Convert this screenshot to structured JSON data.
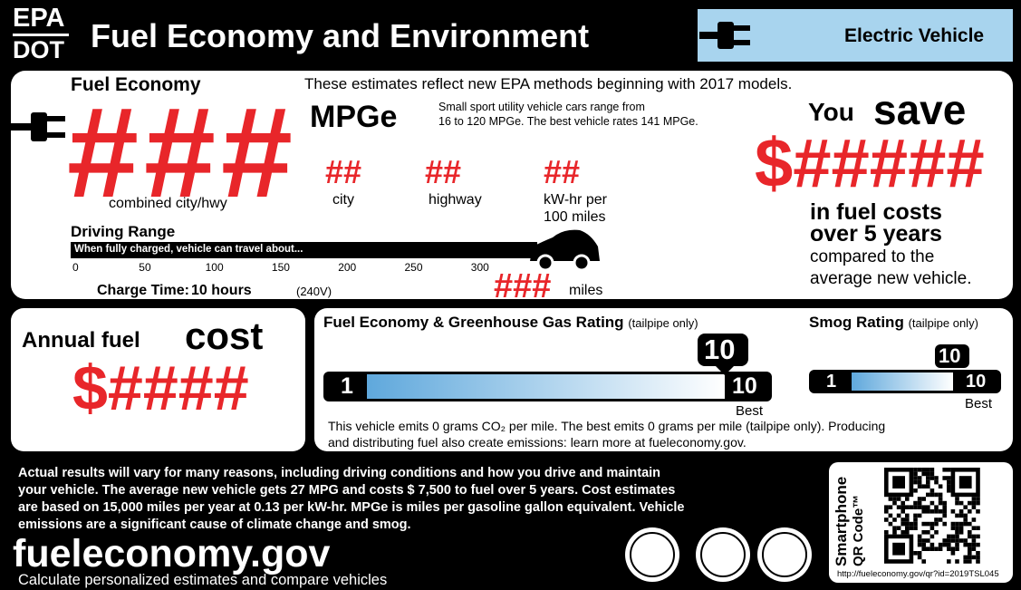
{
  "header": {
    "agency_top": "EPA",
    "agency_bottom": "DOT",
    "title": "Fuel Economy and Environment",
    "vehicle_type": "Electric Vehicle"
  },
  "fuel_economy": {
    "label": "Fuel Economy",
    "note": "These estimates reflect new EPA methods beginning with 2017 models.",
    "combined": "###",
    "unit": "MPGe",
    "range_note": [
      "Small sport utility vehicle cars range from",
      "16 to 120 MPGe. The best vehicle rates 141 MPGe."
    ],
    "combined_label": "combined city/hwy",
    "city": "##",
    "city_label": "city",
    "highway": "##",
    "highway_label": "highway",
    "kwh": "##",
    "kwh_label": [
      "kW-hr per",
      "100 miles"
    ],
    "driving_range": {
      "label": "Driving Range",
      "bar_text": "When fully charged, vehicle can travel about...",
      "ticks": [
        "0",
        "50",
        "100",
        "150",
        "200",
        "250",
        "300"
      ],
      "value": "###",
      "unit": "miles"
    },
    "charge_time": {
      "label": "Charge Time:",
      "value": "10 hours",
      "voltage": "(240V)"
    }
  },
  "savings": {
    "you": "You",
    "save": "save",
    "amount": "$#####",
    "lines": [
      "in fuel costs",
      "over 5 years"
    ],
    "compare": [
      "compared to the",
      "average new vehicle."
    ]
  },
  "annual_cost": {
    "label": "Annual fuel",
    "emph": "cost",
    "amount": "$####"
  },
  "ghg_rating": {
    "title": "Fuel Economy & Greenhouse Gas Rating",
    "qualifier": "(tailpipe only)",
    "rating": "10",
    "min": "1",
    "max": "10",
    "best": "Best"
  },
  "smog_rating": {
    "title": "Smog Rating",
    "qualifier": "(tailpipe only)",
    "rating": "10",
    "min": "1",
    "max": "10",
    "best": "Best"
  },
  "emissions": [
    "This vehicle emits 0 grams CO₂ per mile. The best emits 0 grams per mile (tailpipe only). Producing",
    "and distributing fuel also create emissions: learn more at fueleconomy.gov."
  ],
  "footer": {
    "disclaimer": [
      "Actual results will vary for many reasons, including driving conditions and how you drive and maintain",
      "your vehicle. The average new vehicle gets 27 MPG and costs $ 7,500  to fuel over 5 years. Cost estimates",
      "are based on 15,000 miles per year at 0.13 per kW-hr. MPGe is miles per gasoline gallon equivalent. Vehicle",
      "emissions are a significant cause of climate change and smog."
    ],
    "site": "fueleconomy.gov",
    "tagline": "Calculate personalized estimates and compare vehicles",
    "qr_label": [
      "Smartphone",
      "QR Code™"
    ],
    "qr_url": "http://fueleconomy.gov/qr?id=2019TSL045"
  }
}
